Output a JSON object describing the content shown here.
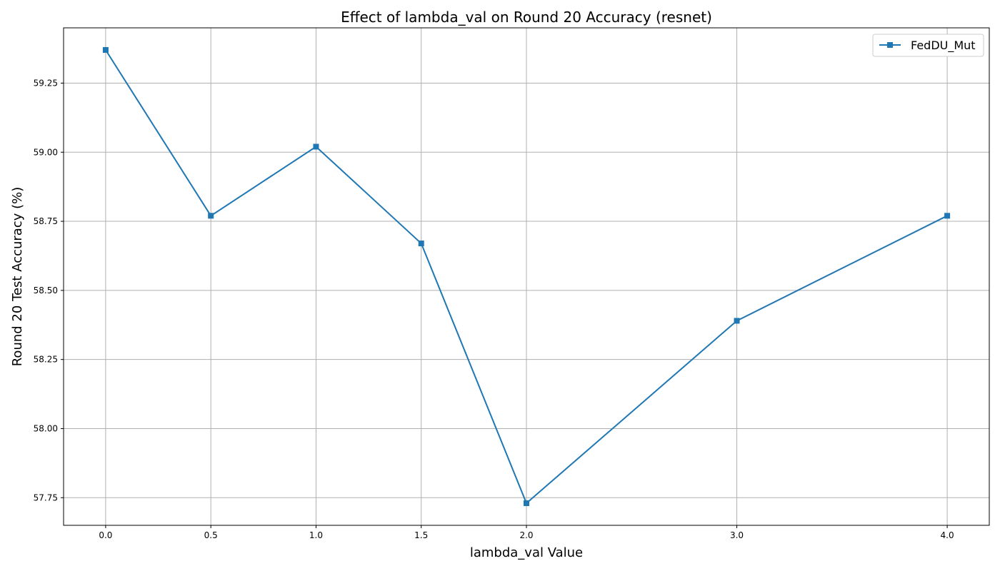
{
  "chart_data": {
    "type": "line",
    "title": "Effect of lambda_val on Round 20 Accuracy (resnet)",
    "xlabel": "lambda_val Value",
    "ylabel": "Round 20 Test Accuracy (%)",
    "x": [
      0.0,
      0.5,
      1.0,
      1.5,
      2.0,
      3.0,
      4.0
    ],
    "x_tick_labels": [
      "0.0",
      "0.5",
      "1.0",
      "1.5",
      "2.0",
      "3.0",
      "4.0"
    ],
    "y_ticks": [
      57.75,
      58.0,
      58.25,
      58.5,
      58.75,
      59.0,
      59.25
    ],
    "y_tick_labels": [
      "57.75",
      "58.00",
      "58.25",
      "58.50",
      "58.75",
      "59.00",
      "59.25"
    ],
    "xlim": [
      -0.2,
      4.2
    ],
    "ylim": [
      57.65,
      59.45
    ],
    "grid": true,
    "legend_position": "top-right",
    "series": [
      {
        "name": "FedDU_Mut",
        "color": "#1f77b4",
        "marker": "square",
        "values": [
          59.37,
          58.77,
          59.02,
          58.67,
          57.73,
          58.39,
          58.77
        ]
      }
    ]
  }
}
